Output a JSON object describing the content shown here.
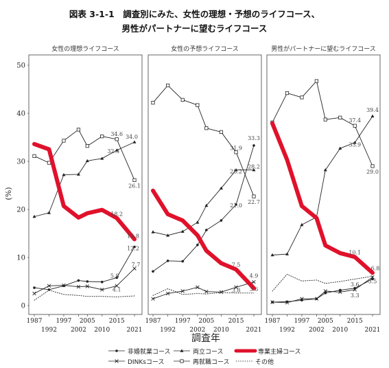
{
  "figure": {
    "title_line1": "図表 3-1-1　調査別にみた、女性の理想・予想のライフコース、",
    "title_line2": "男性がパートナーに望むライフコース",
    "xlabel": "調査年",
    "ylabel": "(%)"
  },
  "chart_data": {
    "type": "line",
    "x": [
      1987,
      1992,
      1997,
      2002,
      2005,
      2010,
      2015,
      2021
    ],
    "xticks_top": [
      "1987",
      "1997",
      "2005",
      "2015"
    ],
    "xticks_bottom": [
      "1992",
      "2002",
      "2010",
      "2021"
    ],
    "ylim": [
      0,
      50
    ],
    "yticks": [
      "0",
      "10",
      "20",
      "30",
      "40",
      "50"
    ],
    "grid": false,
    "panels": [
      {
        "title": "女性の理想ライフコース",
        "series": [
          {
            "key": "hishugyo",
            "values": [
              3.7,
              3.3,
              4.1,
              5.2,
              5.0,
              4.9,
              5.8,
              12.2
            ]
          },
          {
            "key": "ryoritsu",
            "values": [
              18.5,
              19.3,
              27.2,
              27.3,
              30.1,
              30.6,
              32.3,
              34.0
            ]
          },
          {
            "key": "sengyo",
            "values": [
              33.6,
              32.5,
              20.7,
              18.3,
              19.2,
              19.9,
              18.2,
              13.8
            ]
          },
          {
            "key": "dinks",
            "values": [
              2.5,
              4.1,
              4.2,
              3.9,
              4.0,
              3.3,
              4.1,
              7.7
            ]
          },
          {
            "key": "saishushoku",
            "values": [
              31.1,
              29.7,
              34.3,
              36.6,
              33.2,
              35.2,
              34.6,
              26.1
            ]
          },
          {
            "key": "sonota",
            "values": [
              1.1,
              3.2,
              2.3,
              2.1,
              1.9,
              1.9,
              1.8,
              2.0
            ]
          }
        ],
        "labels": [
          "34.0",
          "34.6",
          "32.3",
          "26.1",
          "18.2",
          "13.8",
          "12.2",
          "5.8",
          "7.7",
          "4.1"
        ]
      },
      {
        "title": "女性の予想ライフコース",
        "series": [
          {
            "key": "hishugyo",
            "values": [
              7.1,
              9.3,
              9.2,
              12.6,
              15.7,
              17.7,
              21.0,
              33.3
            ]
          },
          {
            "key": "ryoritsu",
            "values": [
              15.3,
              14.6,
              15.4,
              17.3,
              20.8,
              24.4,
              28.2,
              28.2
            ]
          },
          {
            "key": "sengyo",
            "values": [
              23.9,
              19.0,
              17.7,
              14.6,
              11.4,
              8.8,
              7.5,
              3.6
            ]
          },
          {
            "key": "dinks",
            "values": [
              1.4,
              2.5,
              3.0,
              3.8,
              2.9,
              2.8,
              3.8,
              4.9
            ]
          },
          {
            "key": "saishushoku",
            "values": [
              42.2,
              45.8,
              42.8,
              41.7,
              36.9,
              36.1,
              31.9,
              22.7
            ]
          },
          {
            "key": "sonota",
            "values": [
              2.1,
              3.5,
              2.3,
              2.5,
              2.4,
              2.7,
              2.6,
              2.6
            ]
          }
        ],
        "labels": [
          "33.3",
          "28.2",
          "28.2",
          "31.9",
          "22.7",
          "21.0",
          "7.5",
          "4.9",
          "3.8",
          "3.6"
        ]
      },
      {
        "title": "男性がパートナーに望むライフコース",
        "series": [
          {
            "key": "hishugyo",
            "values": [
              0.7,
              0.8,
              1.1,
              1.4,
              2.6,
              3.2,
              3.6,
              5.5
            ]
          },
          {
            "key": "ryoritsu",
            "values": [
              10.5,
              10.7,
              16.8,
              18.4,
              28.2,
              32.7,
              33.9,
              39.4
            ]
          },
          {
            "key": "sengyo",
            "values": [
              37.9,
              30.3,
              20.7,
              18.2,
              12.5,
              10.9,
              10.1,
              6.8
            ]
          },
          {
            "key": "dinks",
            "values": [
              0.7,
              0.6,
              1.4,
              1.4,
              3.0,
              2.8,
              3.3,
              5.9
            ]
          },
          {
            "key": "saishushoku",
            "values": [
              38.1,
              44.2,
              43.3,
              46.7,
              38.7,
              39.1,
              37.4,
              29.0
            ]
          },
          {
            "key": "sonota",
            "values": [
              3.0,
              6.5,
              5.1,
              5.3,
              4.6,
              5.0,
              5.5,
              6.1
            ]
          }
        ],
        "labels": [
          "39.4",
          "37.4",
          "33.9",
          "29.0",
          "10.1",
          "6.8",
          "3.6",
          "3.3",
          "5.5"
        ]
      }
    ],
    "legend": {
      "placement": "bottom",
      "entries": [
        {
          "key": "hishugyo",
          "label": "非婚就業コース",
          "marker": "dot"
        },
        {
          "key": "ryoritsu",
          "label": "両立コース",
          "marker": "triangle"
        },
        {
          "key": "sengyo",
          "label": "専業主婦コース",
          "marker": "thick-red"
        },
        {
          "key": "dinks",
          "label": "DINKsコース",
          "marker": "x"
        },
        {
          "key": "saishushoku",
          "label": "再就職コース",
          "marker": "square"
        },
        {
          "key": "sonota",
          "label": "その他",
          "marker": "dotted"
        }
      ]
    },
    "colors": {
      "sengyo": "#e0112b",
      "others": "#222222",
      "panel_border": "#555555"
    }
  }
}
